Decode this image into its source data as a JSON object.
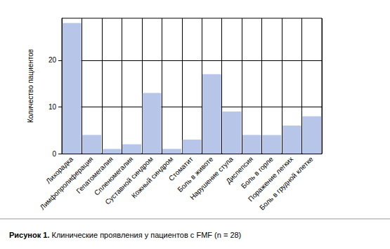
{
  "chart_data": {
    "type": "bar",
    "title": "Рисунок 1. Клинические проявления у пациентов с FMF (n = 28)",
    "y_label": "Количество пациентов",
    "categories": [
      "Лихорадка",
      "Лимфопролиферация",
      "Гепатомегалия",
      "Спленомегалия",
      "Суставной синдром",
      "Кожный синдром",
      "Стоматит",
      "Боль в животе",
      "Нарушение стула",
      "Диспепсия",
      "Боль в горле",
      "Поражение легких",
      "Боль в грудной клетке"
    ],
    "values": [
      28,
      4,
      1,
      2,
      13,
      1,
      3,
      17,
      9,
      4,
      4,
      6,
      8
    ],
    "color": "#b7c5e8",
    "ylim": [
      0,
      29
    ],
    "yticks": [
      0,
      10,
      20
    ],
    "grid": true
  }
}
